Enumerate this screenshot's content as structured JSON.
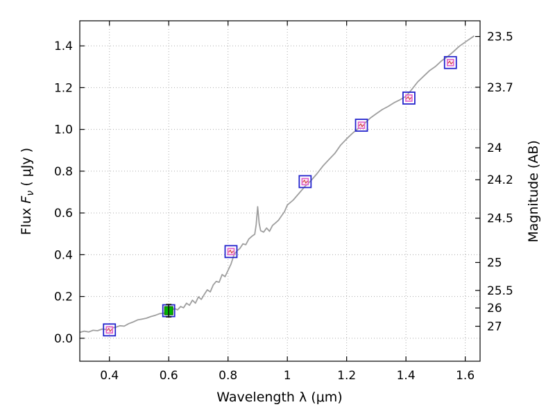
{
  "figure": {
    "background": "#ffffff",
    "title": ""
  },
  "chart_data": {
    "type": "line",
    "title": "",
    "xlabel": "Wavelength λ (μm)",
    "ylabel_left": "Flux F_ν ( μJy )",
    "ylabel_right": "Magnitude (AB)",
    "xlim": [
      0.3,
      1.65
    ],
    "ylim": [
      -0.11,
      1.52
    ],
    "grid": {
      "show": true,
      "style": "dotted",
      "color": "#aaaaaa"
    },
    "legend": "none",
    "x_ticks": [
      {
        "value": 0.4,
        "label": "0.4"
      },
      {
        "value": 0.6,
        "label": "0.6"
      },
      {
        "value": 0.8,
        "label": "0.8"
      },
      {
        "value": 1.0,
        "label": "1"
      },
      {
        "value": 1.2,
        "label": "1.2"
      },
      {
        "value": 1.4,
        "label": "1.4"
      },
      {
        "value": 1.6,
        "label": "1.6"
      }
    ],
    "y_ticks_left": [
      {
        "value": 0.0,
        "label": "0.0"
      },
      {
        "value": 0.2,
        "label": "0.2"
      },
      {
        "value": 0.4,
        "label": "0.4"
      },
      {
        "value": 0.6,
        "label": "0.6"
      },
      {
        "value": 0.8,
        "label": "0.8"
      },
      {
        "value": 1.0,
        "label": "1.0"
      },
      {
        "value": 1.2,
        "label": "1.2"
      },
      {
        "value": 1.4,
        "label": "1.4"
      }
    ],
    "y_ticks_right": [
      {
        "magnitude": 23.5,
        "label": "23.5",
        "flux": 1.445
      },
      {
        "magnitude": 23.7,
        "label": "23.7",
        "flux": 1.202
      },
      {
        "magnitude": 24.0,
        "label": "24",
        "flux": 0.912
      },
      {
        "magnitude": 24.2,
        "label": "24.2",
        "flux": 0.759
      },
      {
        "magnitude": 24.5,
        "label": "24.5",
        "flux": 0.575
      },
      {
        "magnitude": 25.0,
        "label": "25",
        "flux": 0.363
      },
      {
        "magnitude": 25.5,
        "label": "25.5",
        "flux": 0.229
      },
      {
        "magnitude": 26.0,
        "label": "26",
        "flux": 0.145
      },
      {
        "magnitude": 27.0,
        "label": "27",
        "flux": 0.0575
      }
    ],
    "spectrum": {
      "name": "model-spectrum",
      "color": "#9e9e9e",
      "line_width": 1.8,
      "x": [
        0.3,
        0.315,
        0.33,
        0.345,
        0.36,
        0.375,
        0.39,
        0.405,
        0.42,
        0.435,
        0.45,
        0.465,
        0.48,
        0.495,
        0.51,
        0.525,
        0.54,
        0.555,
        0.57,
        0.585,
        0.6,
        0.61,
        0.62,
        0.63,
        0.64,
        0.65,
        0.66,
        0.67,
        0.68,
        0.69,
        0.7,
        0.71,
        0.72,
        0.73,
        0.74,
        0.75,
        0.76,
        0.77,
        0.78,
        0.79,
        0.8,
        0.81,
        0.82,
        0.83,
        0.84,
        0.85,
        0.86,
        0.87,
        0.88,
        0.89,
        0.895,
        0.9,
        0.905,
        0.91,
        0.92,
        0.93,
        0.94,
        0.95,
        0.96,
        0.97,
        0.98,
        0.99,
        1.0,
        1.02,
        1.04,
        1.06,
        1.08,
        1.1,
        1.12,
        1.14,
        1.16,
        1.18,
        1.2,
        1.22,
        1.24,
        1.26,
        1.28,
        1.3,
        1.32,
        1.34,
        1.36,
        1.38,
        1.4,
        1.42,
        1.44,
        1.46,
        1.48,
        1.5,
        1.52,
        1.54,
        1.56,
        1.58,
        1.6,
        1.62,
        1.63
      ],
      "flux": [
        0.028,
        0.034,
        0.03,
        0.038,
        0.036,
        0.044,
        0.042,
        0.05,
        0.052,
        0.06,
        0.058,
        0.07,
        0.078,
        0.088,
        0.092,
        0.096,
        0.104,
        0.11,
        0.118,
        0.12,
        0.128,
        0.135,
        0.142,
        0.136,
        0.152,
        0.146,
        0.168,
        0.158,
        0.182,
        0.168,
        0.198,
        0.186,
        0.21,
        0.232,
        0.222,
        0.255,
        0.272,
        0.268,
        0.305,
        0.295,
        0.325,
        0.355,
        0.4,
        0.418,
        0.43,
        0.452,
        0.448,
        0.475,
        0.488,
        0.498,
        0.545,
        0.63,
        0.55,
        0.515,
        0.508,
        0.528,
        0.512,
        0.54,
        0.552,
        0.565,
        0.585,
        0.605,
        0.638,
        0.662,
        0.695,
        0.728,
        0.755,
        0.788,
        0.825,
        0.855,
        0.885,
        0.925,
        0.955,
        0.982,
        1.005,
        1.028,
        1.055,
        1.075,
        1.095,
        1.11,
        1.128,
        1.142,
        1.158,
        1.192,
        1.228,
        1.255,
        1.282,
        1.302,
        1.328,
        1.348,
        1.372,
        1.398,
        1.418,
        1.438,
        1.448
      ]
    },
    "photometry": {
      "marker_styles": {
        "outer_color": "#2222cc",
        "model": {
          "inner_color": "#e060c8",
          "inner_fill": "#ffe8f6",
          "detail_color": "#cc3333"
        },
        "observed": {
          "fill": "#00b400",
          "edge": "#005a00",
          "error_color": "#101010"
        }
      },
      "points": [
        {
          "wavelength": 0.4,
          "flux": 0.04,
          "style": "model"
        },
        {
          "wavelength": 0.6,
          "flux": 0.132,
          "flux_err": 0.03,
          "style": "observed"
        },
        {
          "wavelength": 0.81,
          "flux": 0.415,
          "style": "model"
        },
        {
          "wavelength": 1.06,
          "flux": 0.75,
          "style": "model"
        },
        {
          "wavelength": 1.25,
          "flux": 1.02,
          "style": "model"
        },
        {
          "wavelength": 1.41,
          "flux": 1.15,
          "style": "model"
        },
        {
          "wavelength": 1.55,
          "flux": 1.32,
          "style": "model"
        }
      ]
    }
  }
}
